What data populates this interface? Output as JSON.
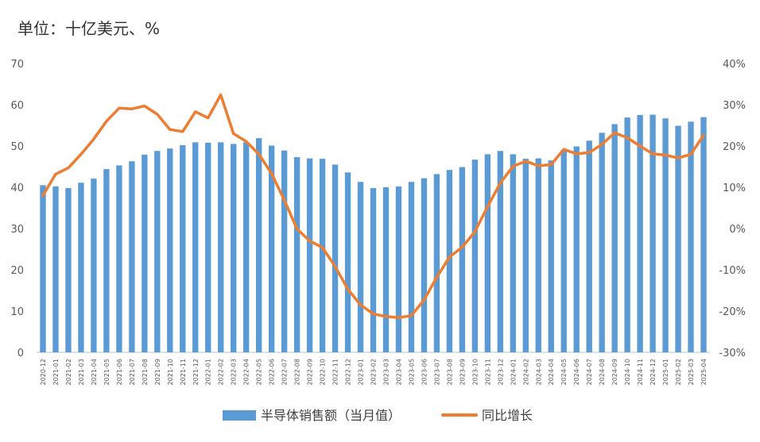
{
  "chart_data": {
    "type": "bar",
    "unit_label": "单位：十亿美元、%",
    "categories": [
      "2020-12",
      "2021-01",
      "2021-02",
      "2021-03",
      "2021-04",
      "2021-05",
      "2021-06",
      "2021-07",
      "2021-08",
      "2021-09",
      "2021-10",
      "2021-11",
      "2021-12",
      "2022-01",
      "2022-02",
      "2022-03",
      "2022-04",
      "2022-05",
      "2022-06",
      "2022-07",
      "2022-08",
      "2022-09",
      "2022-10",
      "2022-11",
      "2022-12",
      "2023-01",
      "2023-02",
      "2023-03",
      "2023-04",
      "2023-05",
      "2023-06",
      "2023-07",
      "2023-08",
      "2023-09",
      "2023-10",
      "2023-11",
      "2023-12",
      "2024-01",
      "2024-02",
      "2024-03",
      "2024-04",
      "2024-05",
      "2024-06",
      "2024-07",
      "2024-08",
      "2024-09",
      "2024-10",
      "2024-11",
      "2024-12",
      "2025-01",
      "2025-02",
      "2025-03",
      "2025-04"
    ],
    "series": [
      {
        "name": "半导体销售额（当月值）",
        "type": "bar",
        "axis": "left",
        "color": "#5b9bd5",
        "values": [
          40.5,
          40.2,
          39.8,
          41.1,
          42.1,
          44.4,
          45.3,
          46.3,
          47.9,
          48.8,
          49.4,
          50.2,
          50.9,
          50.8,
          50.9,
          50.5,
          50.9,
          51.9,
          50.1,
          48.9,
          47.3,
          47.0,
          46.9,
          45.5,
          43.6,
          41.3,
          39.8,
          40.0,
          40.2,
          41.3,
          42.2,
          43.2,
          44.2,
          44.9,
          46.7,
          48.0,
          48.8,
          48.0,
          46.9,
          47.0,
          46.5,
          49.1,
          49.9,
          51.3,
          53.2,
          55.3,
          56.9,
          57.5,
          57.6,
          56.7,
          54.9,
          55.9,
          57.0
        ]
      },
      {
        "name": "同比增长",
        "type": "line",
        "axis": "right",
        "color": "#ed7d31",
        "values": [
          8.0,
          13.2,
          14.7,
          18.0,
          21.7,
          26.0,
          29.2,
          29.0,
          29.7,
          27.7,
          24.0,
          23.5,
          28.3,
          26.8,
          32.4,
          23.0,
          21.1,
          18.0,
          13.3,
          6.9,
          -0.1,
          -3.0,
          -4.6,
          -9.2,
          -14.7,
          -18.5,
          -20.7,
          -21.3,
          -21.6,
          -21.1,
          -17.3,
          -11.8,
          -6.9,
          -4.5,
          -0.8,
          5.3,
          11.0,
          15.1,
          16.3,
          15.2,
          15.5,
          19.2,
          18.1,
          18.4,
          20.4,
          23.2,
          22.0,
          20.0,
          18.1,
          17.8,
          17.1,
          18.0,
          22.6
        ]
      }
    ],
    "y_left": {
      "min": 0,
      "max": 70,
      "step": 10
    },
    "y_right": {
      "min": -30,
      "max": 40,
      "step": 10,
      "format": "percent"
    },
    "gridlines": false,
    "legend_position": "bottom"
  }
}
